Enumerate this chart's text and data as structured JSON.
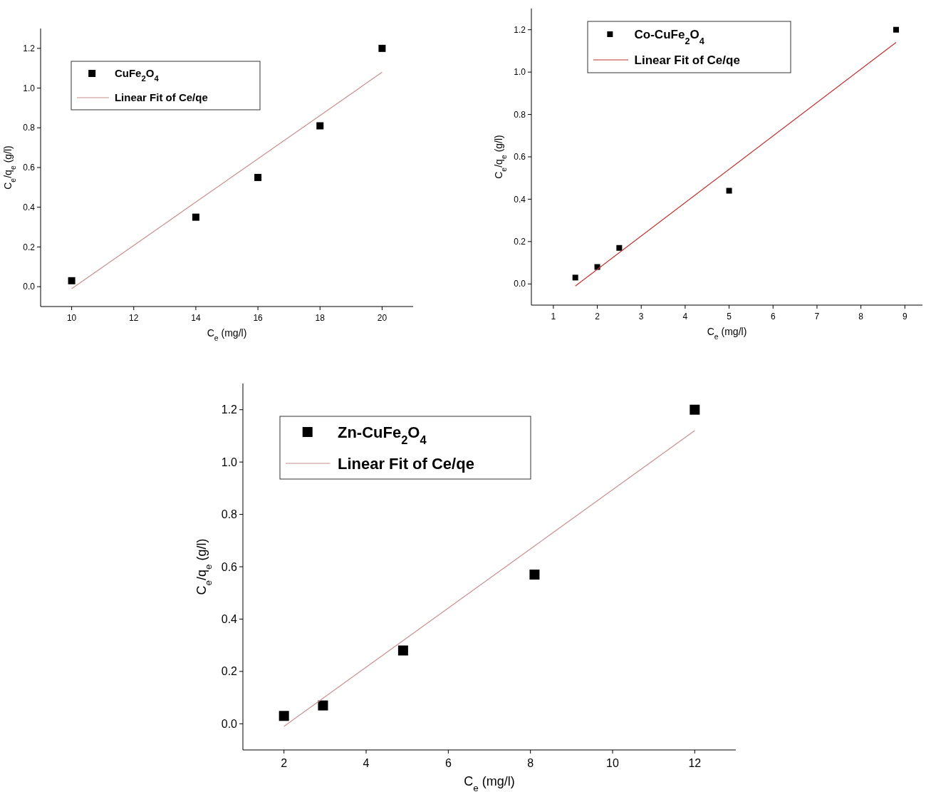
{
  "chart_data": [
    {
      "type": "scatter",
      "xlabel": "C$_{e}$ (mg/l)",
      "ylabel": "C$_{e}$/q$_{e}$ (g/l)",
      "xlim": [
        9,
        21
      ],
      "ylim": [
        -0.1,
        1.3
      ],
      "xticks": [
        10,
        12,
        14,
        16,
        18,
        20
      ],
      "yticks": [
        {
          "value": 0,
          "label": "0.0"
        },
        {
          "value": 0.2,
          "label": "0.2"
        },
        {
          "value": 0.4,
          "label": "0.4"
        },
        {
          "value": 0.6,
          "label": "0.6"
        },
        {
          "value": 0.8,
          "label": "0.8"
        },
        {
          "value": 1,
          "label": "1.0"
        },
        {
          "value": 1.2,
          "label": "1.2"
        }
      ],
      "grid": false,
      "legend": "top left",
      "series": [
        {
          "name": "CuFe$_{2}$O$_{4}$",
          "marker": "square",
          "color": "#000000",
          "x": [
            10,
            14,
            16,
            18,
            20
          ],
          "values": [
            0.03,
            0.35,
            0.55,
            0.81,
            1.2
          ]
        },
        {
          "name": "Linear Fit of Ce/qe",
          "type": "line",
          "marker": "none",
          "color": "#c89090",
          "x": [
            10,
            20
          ],
          "values": [
            -0.01,
            1.08
          ]
        }
      ]
    },
    {
      "type": "scatter",
      "xlabel": "C$_{e}$ (mg/l)",
      "ylabel": "C$_{e}$/q$_{e}$ (g/l)",
      "xlim": [
        0.5,
        9.4
      ],
      "ylim": [
        -0.1,
        1.3
      ],
      "xticks": [
        1,
        2,
        3,
        4,
        5,
        6,
        7,
        8,
        9
      ],
      "yticks": [
        {
          "value": 0,
          "label": "0.0"
        },
        {
          "value": 0.2,
          "label": "0.2"
        },
        {
          "value": 0.4,
          "label": "0.4"
        },
        {
          "value": 0.6,
          "label": "0.6"
        },
        {
          "value": 0.8,
          "label": "0.8"
        },
        {
          "value": 1,
          "label": "1.0"
        },
        {
          "value": 1.2,
          "label": "1.2"
        }
      ],
      "grid": false,
      "legend": "top left",
      "series": [
        {
          "name": "Co-CuFe$_{2}$O$_{4}$",
          "marker": "square",
          "color": "#000000",
          "x": [
            1.5,
            2,
            2.5,
            5,
            8.8
          ],
          "values": [
            0.03,
            0.08,
            0.17,
            0.44,
            1.2
          ]
        },
        {
          "name": "Linear Fit of Ce/qe",
          "type": "line",
          "marker": "none",
          "color": "#c03030",
          "x": [
            1.5,
            8.8
          ],
          "values": [
            -0.01,
            1.14
          ]
        }
      ]
    },
    {
      "type": "scatter",
      "xlabel": "C$_{e}$ (mg/l)",
      "ylabel": "C$_{e}$/q$_{e}$ (g/l)",
      "xlim": [
        1,
        13
      ],
      "ylim": [
        -0.1,
        1.3
      ],
      "xticks": [
        2,
        4,
        6,
        8,
        10,
        12
      ],
      "yticks": [
        {
          "value": 0,
          "label": "0.0"
        },
        {
          "value": 0.2,
          "label": "0.2"
        },
        {
          "value": 0.4,
          "label": "0.4"
        },
        {
          "value": 0.6,
          "label": "0.6"
        },
        {
          "value": 0.8,
          "label": "0.8"
        },
        {
          "value": 1,
          "label": "1.0"
        },
        {
          "value": 1.2,
          "label": "1.2"
        }
      ],
      "grid": false,
      "legend": "top left",
      "series": [
        {
          "name": "Zn-CuFe$_{2}$O$_{4}$",
          "marker": "square",
          "color": "#000000",
          "x": [
            2,
            2.95,
            4.9,
            8.1,
            12
          ],
          "values": [
            0.03,
            0.07,
            0.28,
            0.57,
            1.2
          ]
        },
        {
          "name": "Linear Fit of Ce/qe",
          "type": "line",
          "marker": "none",
          "color": "#c89090",
          "x": [
            2,
            12
          ],
          "values": [
            -0.01,
            1.12
          ]
        }
      ]
    }
  ]
}
